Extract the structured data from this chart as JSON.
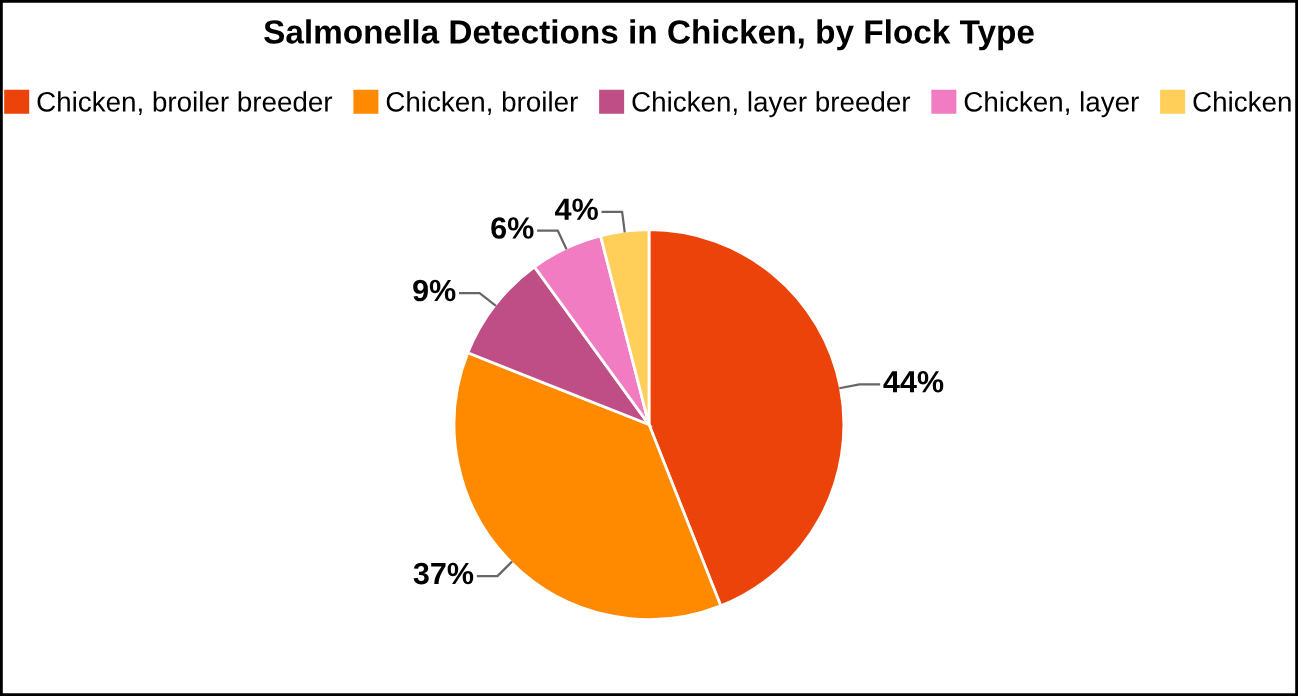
{
  "chart_data": {
    "type": "pie",
    "title": "Salmonella Detections in Chicken, by Flock Type",
    "categories": [
      "Chicken, broiler breeder",
      "Chicken, broiler",
      "Chicken, layer breeder",
      "Chicken, layer",
      "Chicken"
    ],
    "values": [
      44,
      37,
      9,
      6,
      4
    ],
    "value_labels": [
      "44%",
      "37%",
      "9%",
      "6%",
      "4%"
    ],
    "colors": [
      "#eb4309",
      "#ff8a00",
      "#c04e86",
      "#f27cc2",
      "#ffcf5a"
    ],
    "legend": "top"
  }
}
